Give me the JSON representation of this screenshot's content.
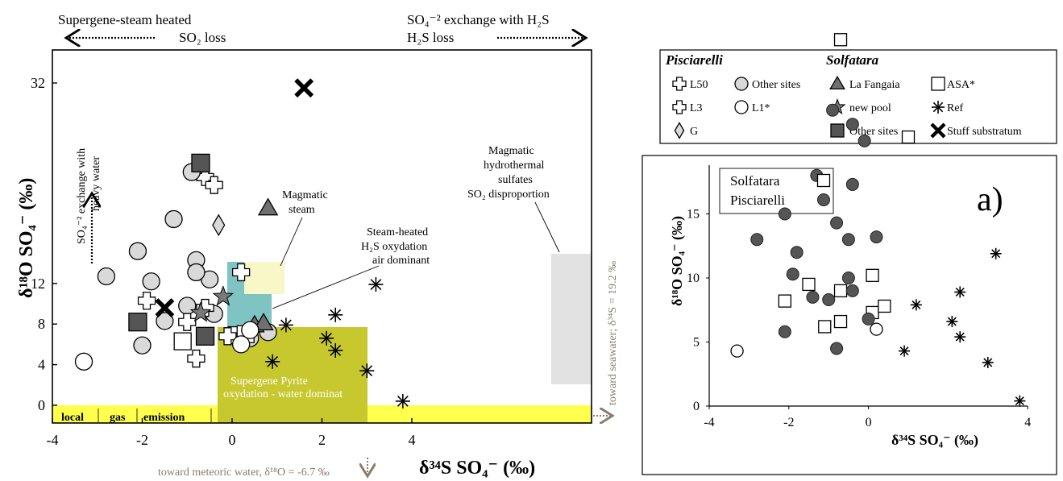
{
  "colors": {
    "supergene_box": "#c6c82e",
    "steam_box": "#7fc3c3",
    "magmatic_steam_box": "#f7f7c8",
    "hydrothermal_box": "#e2e2e2",
    "baseline_band": "#ffff4d",
    "arrow_brown": "#8a7d6a",
    "circle_fill_light": "#d9d9d9",
    "circle_fill_dark": "#555555",
    "square_fill_dark": "#555555",
    "triangle_fill": "#707070",
    "star_fill": "#7a7a7a"
  },
  "main_chart": {
    "top_left_label_line1": "Supergene-steam heated",
    "top_left_label_line2": "SO₂ loss",
    "top_right_label_line1": "SO₄⁻² exchange with H₂S",
    "top_right_label_line2": "H₂S loss",
    "vertical_annot_line1": "SO₄⁻² exchange with",
    "vertical_annot_line2": "heavy water",
    "y_axis_title": "δ¹⁸O SO₄⁻ (‰)",
    "x_axis_title": "δ³⁴S SO₄⁻ (‰)",
    "bottom_annot": "toward meteoric water, δ¹⁸O = -6.7 ‰",
    "right_annot": "toward seawater; δ³⁴S = 19.2 ‰",
    "band_labels": [
      "local",
      "gas",
      "emission"
    ],
    "region_supergene_line1": "Supergene Pyrite",
    "region_supergene_line2": "oxydation - water dominat",
    "region_steam_line1": "Steam-heated",
    "region_steam_line2": "H₂S oxydation",
    "region_steam_line3": "air dominant",
    "region_magmatic_line1": "Magmatic",
    "region_magmatic_line2": "steam",
    "region_hydro_line1": "Magmatic",
    "region_hydro_line2": "hydrothermal",
    "region_hydro_line3": "sulfates",
    "region_hydro_line4": "SO₂ disproportion"
  },
  "legend": {
    "group1_title": "Pisciarelli",
    "group2_title": "Solfatara",
    "items": {
      "l50": "L50",
      "other_p": "Other sites",
      "fangaia": "La Fangaia",
      "asa": "ASA*",
      "l3": "L3",
      "l1": "L1*",
      "new_pool": "new pool",
      "ref": "Ref",
      "g": "G",
      "other_s": "Other sites",
      "stuff": "Stuff substratum"
    }
  },
  "inset": {
    "panel_label": "a)",
    "legend_solfatara": "Solfatara",
    "legend_pisciarelli": "Pisciarelli",
    "y_axis_title": "δ¹⁸O SO₄⁻ (‰)",
    "x_axis_title": "δ³⁴S SO₄⁻ (‰)"
  },
  "chart_data": [
    {
      "type": "scatter",
      "title": "",
      "xlabel": "δ³⁴S SO₄⁻ (‰)",
      "ylabel": "δ¹⁸O SO₄⁻ (‰)",
      "xlim": [
        -4,
        8
      ],
      "x_ticks": [
        -4,
        -2,
        0,
        2,
        4
      ],
      "y_ticks": [
        0,
        4,
        8,
        12,
        32
      ],
      "series": [
        {
          "name": "L50",
          "marker": "cross-outline",
          "points": [
            [
              -0.6,
              22.6
            ],
            [
              -0.4,
              21.8
            ]
          ]
        },
        {
          "name": "Other sites",
          "group": "Pisciarelli",
          "marker": "circle-gray",
          "points": [
            [
              -2.8,
              12.7
            ],
            [
              -2.1,
              15.2
            ],
            [
              -1.8,
              12.2
            ],
            [
              -1.3,
              18.4
            ],
            [
              -0.9,
              23.1
            ],
            [
              -0.8,
              14.3
            ],
            [
              -0.5,
              12.4
            ],
            [
              -0.8,
              13.1
            ],
            [
              -2.0,
              5.9
            ],
            [
              -1.5,
              8.3
            ],
            [
              -1.0,
              9.8
            ],
            [
              -0.4,
              9.0
            ],
            [
              0.8,
              7.2
            ],
            [
              0.4,
              6.6
            ]
          ]
        },
        {
          "name": "La Fangaia",
          "marker": "triangle",
          "points": [
            [
              0.8,
              19.5
            ],
            [
              0.5,
              7.9
            ],
            [
              0.7,
              8.1
            ]
          ]
        },
        {
          "name": "ASA*",
          "marker": "square-open",
          "points": [
            [
              -1.1,
              6.3
            ],
            [
              0.1,
              6.9
            ],
            [
              0.3,
              7.0
            ]
          ]
        },
        {
          "name": "L3",
          "marker": "cross-outline",
          "points": [
            [
              0.2,
              13.1
            ],
            [
              -1.9,
              10.3
            ],
            [
              -1.0,
              8.2
            ],
            [
              -0.8,
              4.6
            ],
            [
              -0.1,
              6.8
            ],
            [
              -0.6,
              9.6
            ]
          ]
        },
        {
          "name": "L1*",
          "marker": "circle-open",
          "points": [
            [
              -3.3,
              4.3
            ],
            [
              0.2,
              6.0
            ],
            [
              0.4,
              7.4
            ]
          ]
        },
        {
          "name": "new pool",
          "marker": "star",
          "points": [
            [
              -0.7,
              9.1
            ],
            [
              -0.2,
              10.7
            ]
          ]
        },
        {
          "name": "Ref",
          "marker": "asterisk",
          "points": [
            [
              1.2,
              7.9
            ],
            [
              0.9,
              4.3
            ],
            [
              2.1,
              6.6
            ],
            [
              2.3,
              8.9
            ],
            [
              2.3,
              5.4
            ],
            [
              3.0,
              3.4
            ],
            [
              3.2,
              11.9
            ],
            [
              3.8,
              0.4
            ]
          ]
        },
        {
          "name": "G",
          "marker": "diamond",
          "points": [
            [
              -0.3,
              17.8
            ]
          ]
        },
        {
          "name": "Other sites",
          "group": "Solfatara",
          "marker": "square-dark",
          "points": [
            [
              -0.7,
              24.0
            ],
            [
              -2.1,
              8.2
            ],
            [
              -0.6,
              6.8
            ]
          ]
        },
        {
          "name": "Stuff substratum",
          "marker": "x",
          "points": [
            [
              -1.5,
              9.6
            ],
            [
              1.6,
              31.5
            ]
          ]
        }
      ]
    },
    {
      "type": "scatter",
      "title": "a)",
      "xlabel": "δ³⁴S SO₄⁻ (‰)",
      "ylabel": "δ¹⁸O SO₄⁻ (‰)",
      "x_ticks": [
        -4,
        -2,
        0,
        4
      ],
      "y_ticks": [
        0,
        5,
        10,
        15
      ],
      "series": [
        {
          "name": "Solfatara",
          "marker": "square-open",
          "points": [
            [
              2.7,
              38.5
            ],
            [
              -0.7,
              28.6
            ],
            [
              1.0,
              21.0
            ],
            [
              -2.1,
              8.2
            ],
            [
              -1.5,
              9.5
            ],
            [
              -1.1,
              6.2
            ],
            [
              -0.7,
              9.0
            ],
            [
              -0.7,
              6.6
            ],
            [
              0.1,
              7.3
            ],
            [
              0.1,
              10.2
            ],
            [
              0.4,
              7.8
            ]
          ]
        },
        {
          "name": "Pisciarelli",
          "marker": "circle-dark",
          "points": [
            [
              -2.8,
              13.0
            ],
            [
              -2.1,
              15.0
            ],
            [
              -1.8,
              12.0
            ],
            [
              -1.3,
              18.0
            ],
            [
              -0.9,
              23.1
            ],
            [
              -0.8,
              14.3
            ],
            [
              -0.5,
              13.0
            ],
            [
              -0.4,
              17.3
            ],
            [
              -0.4,
              22.0
            ],
            [
              -0.1,
              20.7
            ],
            [
              -1.9,
              10.3
            ],
            [
              -1.4,
              8.5
            ],
            [
              -1.0,
              8.3
            ],
            [
              -2.1,
              5.8
            ],
            [
              -0.8,
              4.5
            ],
            [
              -0.4,
              9.0
            ],
            [
              -0.5,
              10.0
            ],
            [
              0.2,
              13.2
            ],
            [
              0.0,
              6.8
            ]
          ]
        },
        {
          "name": "L1*",
          "marker": "circle-open",
          "points": [
            [
              -3.3,
              4.3
            ],
            [
              0.2,
              6.0
            ]
          ]
        },
        {
          "name": "Ref",
          "marker": "asterisk",
          "points": [
            [
              0.9,
              4.3
            ],
            [
              1.2,
              7.9
            ],
            [
              2.1,
              6.6
            ],
            [
              2.3,
              8.9
            ],
            [
              2.3,
              5.4
            ],
            [
              3.0,
              3.4
            ],
            [
              3.2,
              11.9
            ],
            [
              3.8,
              0.4
            ]
          ]
        }
      ]
    }
  ]
}
